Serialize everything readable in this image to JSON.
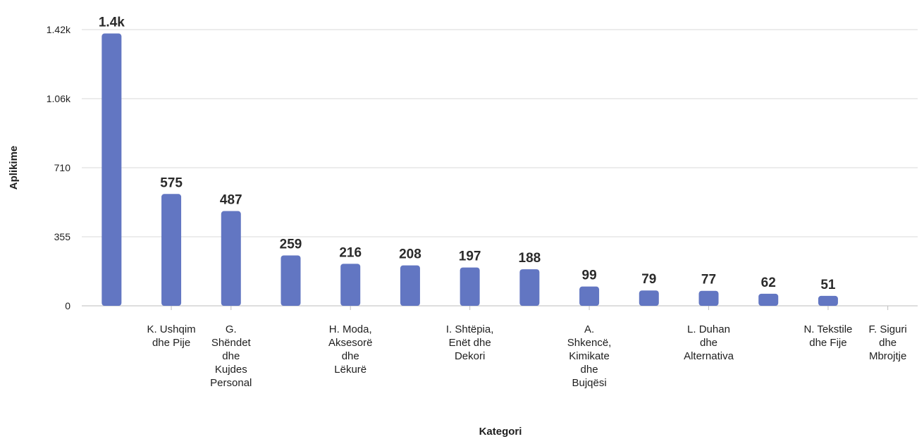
{
  "chart_data": {
    "type": "bar",
    "title": "",
    "xlabel": "Kategori",
    "ylabel": "Aplikime",
    "ylim": [
      0,
      1420
    ],
    "y_ticks": [
      {
        "value": 0,
        "label": "0"
      },
      {
        "value": 355,
        "label": "355"
      },
      {
        "value": 710,
        "label": "710"
      },
      {
        "value": 1065,
        "label": "1.06k"
      },
      {
        "value": 1420,
        "label": "1.42k"
      }
    ],
    "bar_color": "#6276c2",
    "grid": true,
    "legend": "none",
    "bars": [
      {
        "label": "",
        "value": 1400,
        "value_label": "1.4k"
      },
      {
        "label": "K. Ushqim dhe Pije",
        "value": 575,
        "value_label": "575"
      },
      {
        "label": "G. Shëndet dhe Kujdes Personal",
        "value": 487,
        "value_label": "487"
      },
      {
        "label": "",
        "value": 259,
        "value_label": "259"
      },
      {
        "label": "H. Moda, Aksesorë dhe Lëkurë",
        "value": 216,
        "value_label": "216"
      },
      {
        "label": "",
        "value": 208,
        "value_label": "208"
      },
      {
        "label": "I. Shtëpia, Enët dhe Dekori",
        "value": 197,
        "value_label": "197"
      },
      {
        "label": "",
        "value": 188,
        "value_label": "188"
      },
      {
        "label": "A. Shkencë, Kimikate dhe Bujqësi",
        "value": 99,
        "value_label": "99"
      },
      {
        "label": "",
        "value": 79,
        "value_label": "79"
      },
      {
        "label": "L. Duhan dhe Alternativa",
        "value": 77,
        "value_label": "77"
      },
      {
        "label": "",
        "value": 62,
        "value_label": "62"
      },
      {
        "label": "N. Tekstile dhe Fije",
        "value": 51,
        "value_label": "51"
      },
      {
        "label": "F. Siguri dhe Mbrojtje",
        "value": 0,
        "value_label": ""
      }
    ],
    "category_label_lines": [
      [],
      [
        "K. Ushqim",
        "dhe Pije"
      ],
      [
        "G.",
        "Shëndet",
        "dhe",
        "Kujdes",
        "Personal"
      ],
      [],
      [
        "H. Moda,",
        "Aksesorë",
        "dhe",
        "Lëkurë"
      ],
      [],
      [
        "I. Shtëpia,",
        "Enët dhe",
        "Dekori"
      ],
      [],
      [
        "A.",
        "Shkencë,",
        "Kimikate",
        "dhe",
        "Bujqësi"
      ],
      [],
      [
        "L. Duhan",
        "dhe",
        "Alternativa"
      ],
      [],
      [
        "N. Tekstile",
        "dhe Fije"
      ],
      [
        "F. Siguri",
        "dhe",
        "Mbrojtje"
      ]
    ]
  }
}
